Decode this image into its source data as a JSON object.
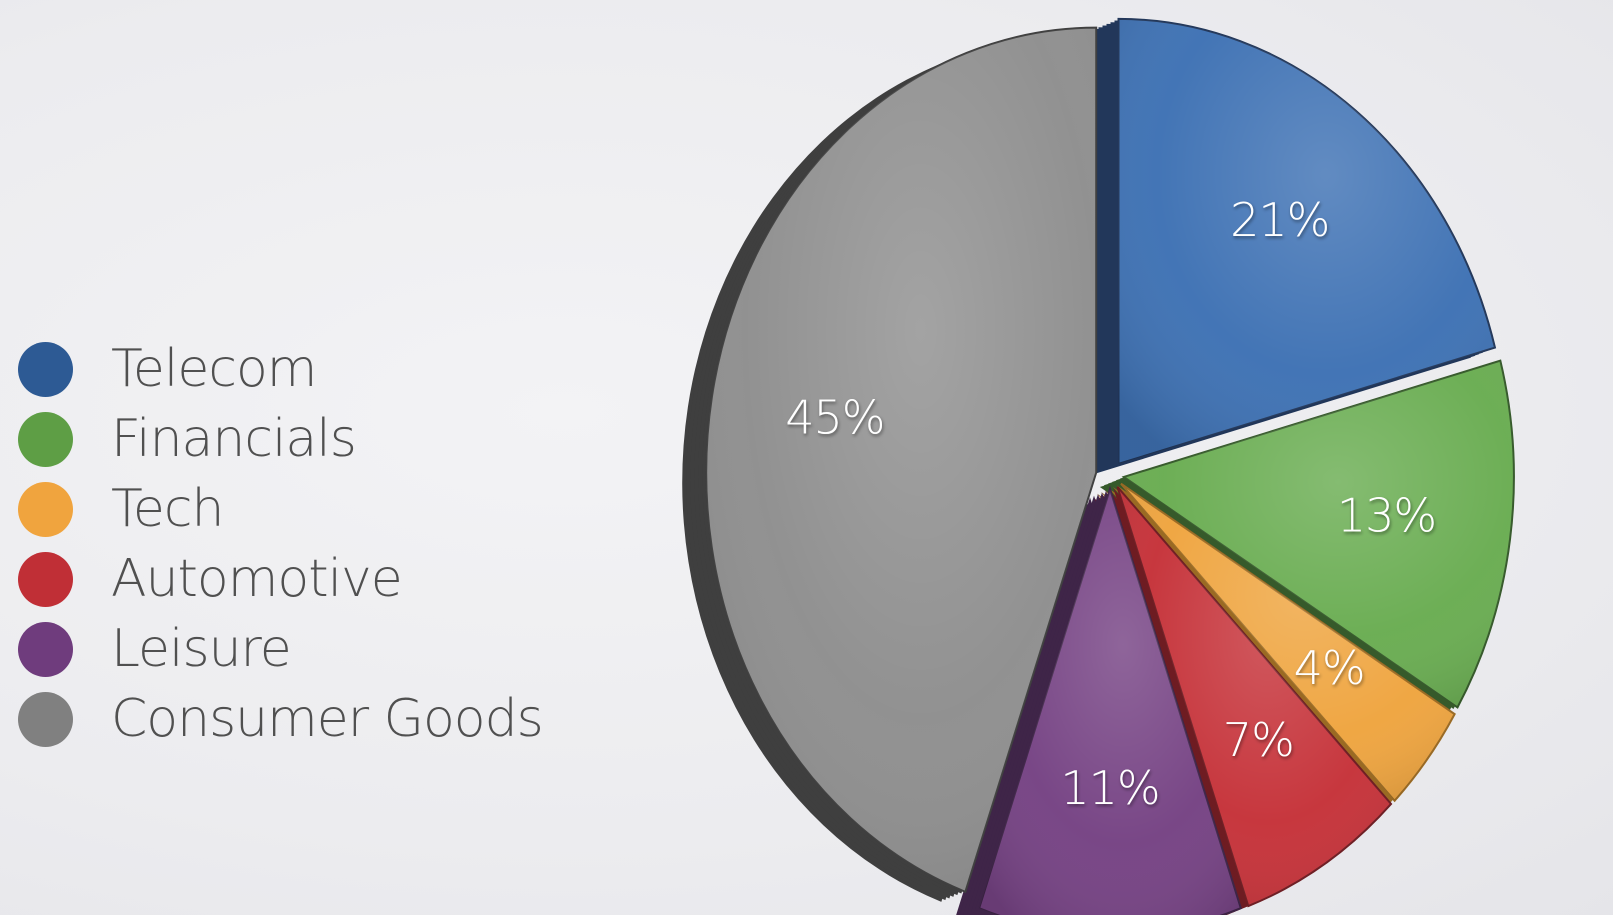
{
  "chart_data": {
    "type": "pie",
    "exploded": true,
    "legend_position": "left",
    "slices": [
      {
        "name": "Telecom",
        "value": 21,
        "label": "21%",
        "color": "#3f72b4",
        "side_color": "#22375a"
      },
      {
        "name": "Financials",
        "value": 13,
        "label": "13%",
        "color": "#6aad52",
        "side_color": "#365a2b"
      },
      {
        "name": "Tech",
        "value": 4,
        "label": "4%",
        "color": "#efa540",
        "side_color": "#9a6a23"
      },
      {
        "name": "Automotive",
        "value": 7,
        "label": "7%",
        "color": "#c6333a",
        "side_color": "#6e1c22"
      },
      {
        "name": "Leisure",
        "value": 11,
        "label": "11%",
        "color": "#764384",
        "side_color": "#3f2548"
      },
      {
        "name": "Consumer Goods",
        "value": 45,
        "label": "45%",
        "color": "#8f8f8f",
        "side_color": "#3f3f3f"
      }
    ]
  },
  "legend": {
    "items": [
      {
        "label": "Telecom",
        "color": "#2d5a94"
      },
      {
        "label": "Financials",
        "color": "#5e9e45"
      },
      {
        "label": "Tech",
        "color": "#f0a43e"
      },
      {
        "label": "Automotive",
        "color": "#c02f36"
      },
      {
        "label": "Leisure",
        "color": "#6f3c7d"
      },
      {
        "label": "Consumer Goods",
        "color": "#808080"
      }
    ]
  }
}
